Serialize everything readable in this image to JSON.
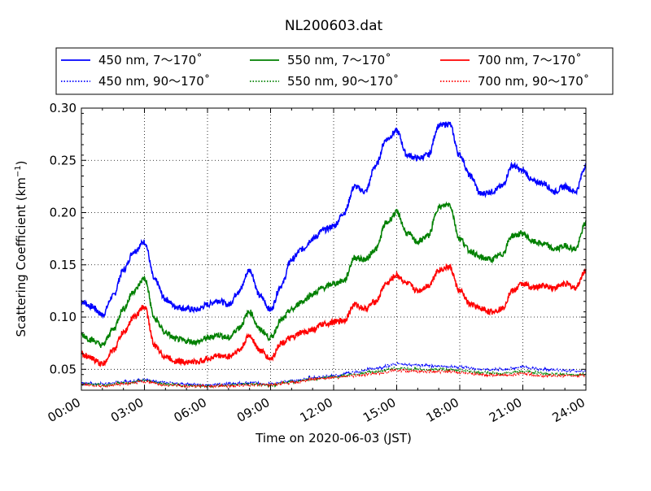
{
  "chart_data": {
    "type": "line",
    "title": "NL200603.dat",
    "xlabel": "Time on 2020-06-03 (JST)",
    "ylabel": "Scattering Coefficient (km",
    "ylabel_sup": "−1",
    "ylabel_end": ")",
    "xlim": [
      0,
      24
    ],
    "ylim": [
      0.03,
      0.3
    ],
    "x_ticks": [
      0,
      3,
      6,
      9,
      12,
      15,
      18,
      21,
      24
    ],
    "x_tick_labels": [
      "00:00",
      "03:00",
      "06:00",
      "09:00",
      "12:00",
      "15:00",
      "18:00",
      "21:00",
      "24:00"
    ],
    "y_ticks": [
      0.05,
      0.1,
      0.15,
      0.2,
      0.25,
      0.3
    ],
    "y_tick_labels": [
      "0.05",
      "0.10",
      "0.15",
      "0.20",
      "0.25",
      "0.30"
    ],
    "grid": true,
    "grid_style": "dotted",
    "legend_position": "top",
    "x_units": "hours",
    "series": [
      {
        "name": "450 nm, 7～170˚",
        "color": "#0000ff",
        "style": "solid",
        "x": [
          0,
          0.5,
          1,
          1.5,
          2,
          2.5,
          3,
          3.5,
          4,
          4.5,
          5,
          5.5,
          6,
          6.5,
          7,
          7.5,
          8,
          8.5,
          9,
          9.5,
          10,
          10.5,
          11,
          11.5,
          12,
          12.5,
          13,
          13.5,
          14,
          14.5,
          15,
          15.5,
          16,
          16.5,
          17,
          17.5,
          18,
          18.5,
          19,
          19.5,
          20,
          20.5,
          21,
          21.5,
          22,
          22.5,
          23,
          23.5,
          24
        ],
        "y": [
          0.115,
          0.11,
          0.102,
          0.12,
          0.145,
          0.163,
          0.172,
          0.135,
          0.117,
          0.11,
          0.108,
          0.107,
          0.112,
          0.116,
          0.112,
          0.125,
          0.145,
          0.12,
          0.107,
          0.13,
          0.155,
          0.165,
          0.175,
          0.183,
          0.187,
          0.2,
          0.225,
          0.22,
          0.245,
          0.27,
          0.278,
          0.255,
          0.252,
          0.255,
          0.283,
          0.285,
          0.255,
          0.235,
          0.218,
          0.22,
          0.225,
          0.245,
          0.24,
          0.23,
          0.228,
          0.22,
          0.225,
          0.22,
          0.245
        ]
      },
      {
        "name": "450 nm, 90～170˚",
        "color": "#0000ff",
        "style": "dotted",
        "x": [
          0,
          1,
          2,
          3,
          4,
          5,
          6,
          7,
          8,
          9,
          10,
          11,
          12,
          13,
          14,
          15,
          16,
          17,
          18,
          19,
          20,
          21,
          22,
          23,
          24
        ],
        "y": [
          0.037,
          0.036,
          0.038,
          0.04,
          0.037,
          0.036,
          0.035,
          0.036,
          0.037,
          0.036,
          0.039,
          0.042,
          0.044,
          0.047,
          0.051,
          0.055,
          0.054,
          0.053,
          0.052,
          0.05,
          0.05,
          0.052,
          0.05,
          0.049,
          0.048
        ]
      },
      {
        "name": "550 nm, 7～170˚",
        "color": "#008000",
        "style": "solid",
        "x": [
          0,
          0.5,
          1,
          1.5,
          2,
          2.5,
          3,
          3.5,
          4,
          4.5,
          5,
          5.5,
          6,
          6.5,
          7,
          7.5,
          8,
          8.5,
          9,
          9.5,
          10,
          10.5,
          11,
          11.5,
          12,
          12.5,
          13,
          13.5,
          14,
          14.5,
          15,
          15.5,
          16,
          16.5,
          17,
          17.5,
          18,
          18.5,
          19,
          19.5,
          20,
          20.5,
          21,
          21.5,
          22,
          22.5,
          23,
          23.5,
          24
        ],
        "y": [
          0.083,
          0.078,
          0.073,
          0.088,
          0.108,
          0.125,
          0.137,
          0.098,
          0.085,
          0.079,
          0.077,
          0.076,
          0.08,
          0.083,
          0.08,
          0.09,
          0.105,
          0.088,
          0.08,
          0.097,
          0.107,
          0.115,
          0.122,
          0.128,
          0.132,
          0.135,
          0.157,
          0.155,
          0.165,
          0.19,
          0.2,
          0.18,
          0.172,
          0.178,
          0.205,
          0.208,
          0.175,
          0.163,
          0.157,
          0.155,
          0.16,
          0.178,
          0.18,
          0.172,
          0.17,
          0.165,
          0.168,
          0.165,
          0.19
        ]
      },
      {
        "name": "550 nm, 90～170˚",
        "color": "#008000",
        "style": "dotted",
        "x": [
          0,
          1,
          2,
          3,
          4,
          5,
          6,
          7,
          8,
          9,
          10,
          11,
          12,
          13,
          14,
          15,
          16,
          17,
          18,
          19,
          20,
          21,
          22,
          23,
          24
        ],
        "y": [
          0.036,
          0.035,
          0.037,
          0.039,
          0.036,
          0.034,
          0.034,
          0.035,
          0.036,
          0.035,
          0.038,
          0.041,
          0.043,
          0.045,
          0.048,
          0.051,
          0.05,
          0.05,
          0.049,
          0.047,
          0.046,
          0.048,
          0.046,
          0.045,
          0.045
        ]
      },
      {
        "name": "700 nm, 7～170˚",
        "color": "#ff0000",
        "style": "solid",
        "x": [
          0,
          0.5,
          1,
          1.5,
          2,
          2.5,
          3,
          3.5,
          4,
          4.5,
          5,
          5.5,
          6,
          6.5,
          7,
          7.5,
          8,
          8.5,
          9,
          9.5,
          10,
          10.5,
          11,
          11.5,
          12,
          12.5,
          13,
          13.5,
          14,
          14.5,
          15,
          15.5,
          16,
          16.5,
          17,
          17.5,
          18,
          18.5,
          19,
          19.5,
          20,
          20.5,
          21,
          21.5,
          22,
          22.5,
          23,
          23.5,
          24
        ],
        "y": [
          0.065,
          0.06,
          0.055,
          0.068,
          0.085,
          0.1,
          0.11,
          0.072,
          0.062,
          0.058,
          0.057,
          0.057,
          0.06,
          0.063,
          0.062,
          0.068,
          0.082,
          0.068,
          0.06,
          0.075,
          0.08,
          0.085,
          0.088,
          0.093,
          0.095,
          0.097,
          0.112,
          0.108,
          0.115,
          0.132,
          0.14,
          0.132,
          0.125,
          0.13,
          0.145,
          0.148,
          0.125,
          0.112,
          0.108,
          0.105,
          0.108,
          0.125,
          0.132,
          0.128,
          0.13,
          0.128,
          0.132,
          0.128,
          0.145
        ]
      },
      {
        "name": "700 nm, 90～170˚",
        "color": "#ff0000",
        "style": "dotted",
        "x": [
          0,
          1,
          2,
          3,
          4,
          5,
          6,
          7,
          8,
          9,
          10,
          11,
          12,
          13,
          14,
          15,
          16,
          17,
          18,
          19,
          20,
          21,
          22,
          23,
          24
        ],
        "y": [
          0.035,
          0.034,
          0.036,
          0.038,
          0.035,
          0.034,
          0.034,
          0.034,
          0.035,
          0.035,
          0.037,
          0.04,
          0.042,
          0.044,
          0.046,
          0.049,
          0.048,
          0.048,
          0.047,
          0.045,
          0.044,
          0.046,
          0.044,
          0.044,
          0.044
        ]
      }
    ]
  }
}
